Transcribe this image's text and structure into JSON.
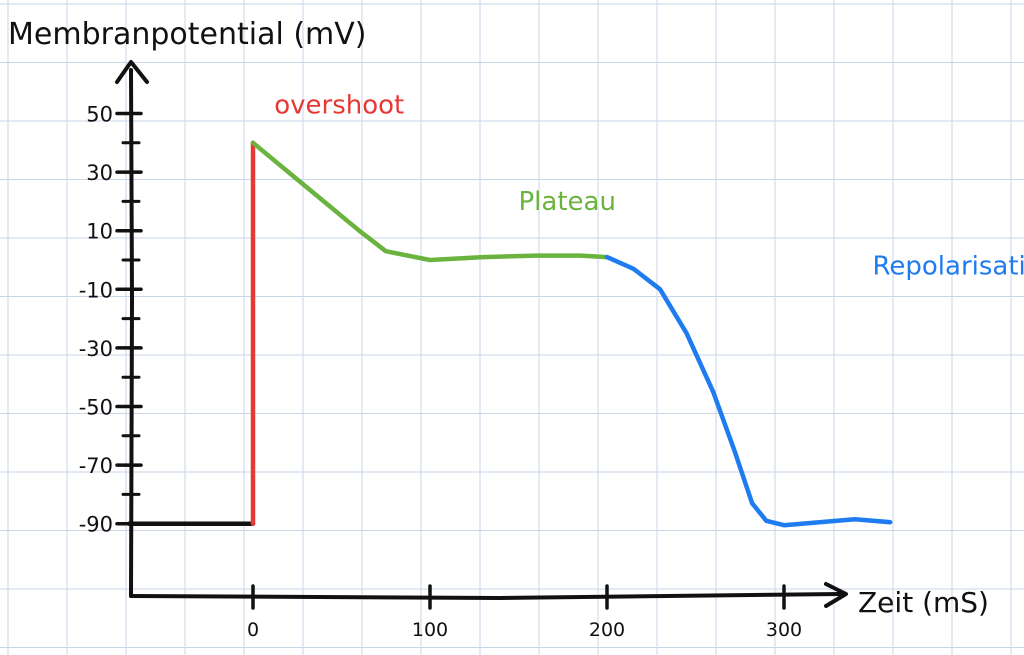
{
  "chart_data": {
    "type": "line",
    "title": "Membranpotential (mV)",
    "xlabel": "Zeit (mS)",
    "ylabel": "Membranpotential (mV)",
    "xlim": [
      -70,
      325
    ],
    "ylim": [
      -100,
      60
    ],
    "grid": true,
    "y_ticks": [
      {
        "value": 50,
        "label": "50"
      },
      {
        "value": 30,
        "label": "30"
      },
      {
        "value": 10,
        "label": "10"
      },
      {
        "value": -10,
        "label": "-10"
      },
      {
        "value": -30,
        "label": "-30"
      },
      {
        "value": -50,
        "label": "-50"
      },
      {
        "value": -70,
        "label": "-70"
      },
      {
        "value": -90,
        "label": "-90"
      }
    ],
    "x_ticks": [
      {
        "value": 0,
        "label": "0"
      },
      {
        "value": 100,
        "label": "100"
      },
      {
        "value": 200,
        "label": "200"
      },
      {
        "value": 300,
        "label": "300"
      }
    ],
    "series": [
      {
        "name": "",
        "color": "#111111",
        "points": [
          [
            -70,
            -90
          ],
          [
            0,
            -90
          ]
        ]
      },
      {
        "name": "",
        "color": "#e53935",
        "points": [
          [
            0,
            -90
          ],
          [
            0,
            40
          ]
        ]
      },
      {
        "name": "",
        "color": "#6ab33e",
        "points": [
          [
            0,
            40
          ],
          [
            20,
            30
          ],
          [
            40,
            20
          ],
          [
            60,
            10
          ],
          [
            75,
            3
          ],
          [
            100,
            0
          ],
          [
            130,
            1
          ],
          [
            160,
            1.5
          ],
          [
            185,
            1.5
          ],
          [
            200,
            1
          ]
        ]
      },
      {
        "name": "",
        "color": "#1e7bf0",
        "points": [
          [
            200,
            1
          ],
          [
            215,
            -3
          ],
          [
            230,
            -10
          ],
          [
            245,
            -25
          ],
          [
            260,
            -45
          ],
          [
            272,
            -65
          ],
          [
            282,
            -83
          ],
          [
            290,
            -89
          ],
          [
            300,
            -90.5
          ],
          [
            320,
            -89.5
          ],
          [
            340,
            -88.5
          ],
          [
            360,
            -89.5
          ]
        ]
      }
    ],
    "annotations": [
      {
        "text": "overshoot",
        "color": "#e53935",
        "x": 12,
        "y": 50
      },
      {
        "text": "Plateau",
        "color": "#6ab33e",
        "x": 150,
        "y": 17
      },
      {
        "text": "Repolarisation",
        "color": "#1e7bf0",
        "x": 350,
        "y": -5
      }
    ]
  }
}
